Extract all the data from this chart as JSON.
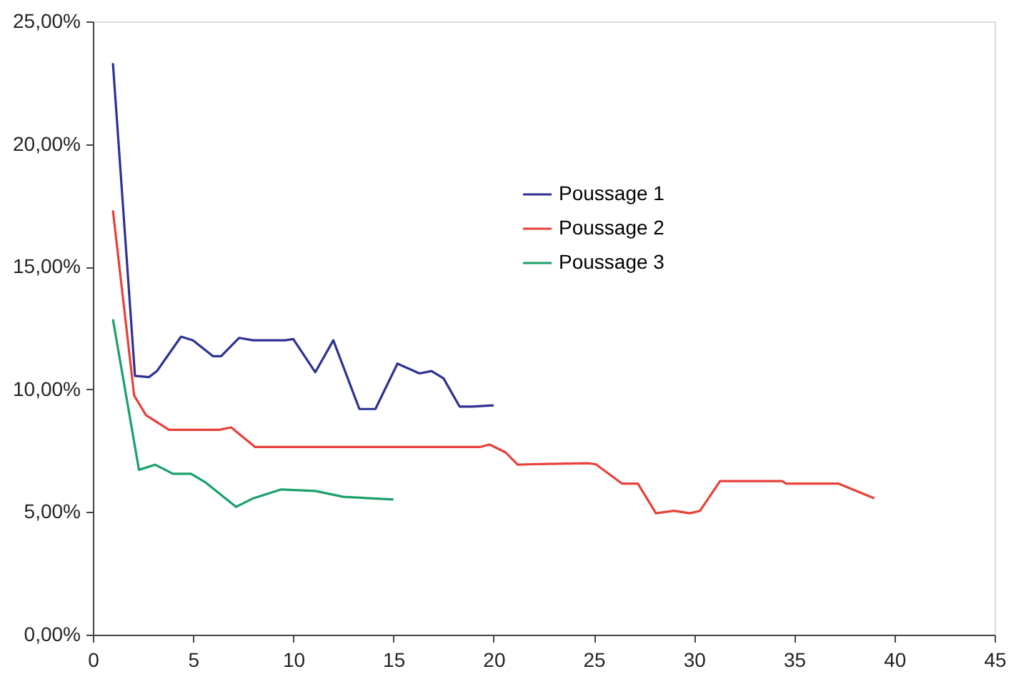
{
  "chart_data": {
    "type": "line",
    "xlim": [
      0,
      45
    ],
    "xticks": [
      0,
      5,
      10,
      15,
      20,
      25,
      30,
      35,
      40,
      45
    ],
    "ylim": [
      0,
      25
    ],
    "yticks": [
      {
        "value": 0,
        "label": "0,00%"
      },
      {
        "value": 5,
        "label": "5,00%"
      },
      {
        "value": 10,
        "label": "10,00%"
      },
      {
        "value": 15,
        "label": "15,00%"
      },
      {
        "value": 20,
        "label": "20,00%"
      },
      {
        "value": 25,
        "label": "25,00%"
      }
    ],
    "grid": false,
    "legend": "top right",
    "marker": "none",
    "line_style": "solid",
    "series": [
      {
        "name": "Poussage 1",
        "color": "#2e3192",
        "x": [
          1,
          2.1,
          2.8,
          3.2,
          4.4,
          5.0,
          6.0,
          6.4,
          7.3,
          8.0,
          9.6,
          10.0,
          11.1,
          12.0,
          13.3,
          14.1,
          15.2,
          16.3,
          16.9,
          17.5,
          18.3,
          18.9,
          20
        ],
        "values": [
          23.3,
          10.55,
          10.5,
          10.75,
          12.15,
          12.0,
          11.35,
          11.35,
          12.1,
          12.0,
          12.0,
          12.05,
          10.7,
          12.0,
          9.2,
          9.2,
          11.05,
          10.65,
          10.75,
          10.45,
          9.3,
          9.3,
          9.35
        ]
      },
      {
        "name": "Poussage 2",
        "color": "#e8403a",
        "x": [
          1,
          2.06,
          2.65,
          3.8,
          6.3,
          6.9,
          8.1,
          19.3,
          19.8,
          20.6,
          21.2,
          21.9,
          24.7,
          25.1,
          26.4,
          27.2,
          28.1,
          29.0,
          29.8,
          30.3,
          31.3,
          34.4,
          34.6,
          37.2,
          39
        ],
        "values": [
          17.3,
          9.75,
          8.95,
          8.35,
          8.35,
          8.45,
          7.65,
          7.65,
          7.75,
          7.43,
          6.93,
          6.95,
          6.99,
          6.95,
          6.16,
          6.16,
          4.95,
          5.05,
          4.95,
          5.05,
          6.26,
          6.26,
          6.16,
          6.16,
          5.56
        ]
      },
      {
        "name": "Poussage 3",
        "color": "#1aa06a",
        "x": [
          1,
          2.3,
          3.1,
          4.0,
          4.9,
          5.6,
          7.15,
          8.0,
          9.4,
          11.1,
          12.5,
          15
        ],
        "values": [
          12.86,
          6.72,
          6.93,
          6.56,
          6.56,
          6.22,
          5.21,
          5.56,
          5.92,
          5.86,
          5.62,
          5.51
        ]
      }
    ]
  }
}
